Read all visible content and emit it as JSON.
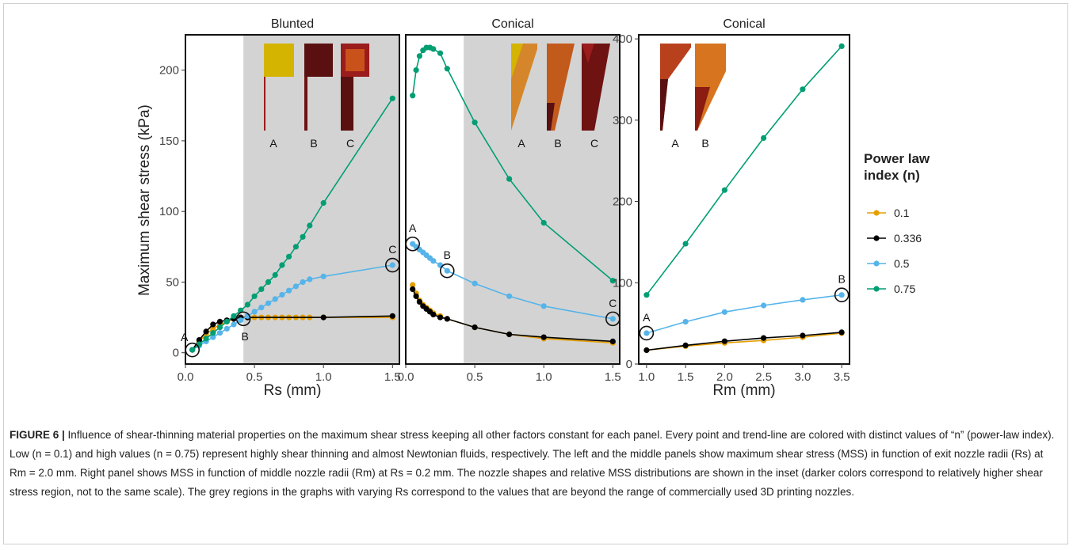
{
  "shared": {
    "ylabel": "Maximum shear stress (kPa)",
    "legend_title_lines": [
      "Power law",
      "index (n)"
    ],
    "legend_labels": [
      "0.1",
      "0.336",
      "0.5",
      "0.75"
    ],
    "colors": {
      "0.1": "#E69F00",
      "0.336": "#000000",
      "0.5": "#56B4E9",
      "0.75": "#009E73",
      "shade": "#d3d3d3",
      "inset_yellow": "#d4b400",
      "inset_dark": "#5a1010",
      "inset_red": "#9b1c1c",
      "inset_orange": "#c8521a"
    }
  },
  "chart_data": [
    {
      "type": "line",
      "title": "Blunted",
      "xlabel": "Rs (mm)",
      "xlim": [
        0,
        1.55
      ],
      "ylim": [
        -8,
        225
      ],
      "xticks": [
        0.0,
        0.5,
        1.0,
        1.5
      ],
      "xtick_labels": [
        "0.0",
        "0.5",
        "1.0",
        "1.5"
      ],
      "yticks": [
        0,
        50,
        100,
        150,
        200
      ],
      "ytick_labels": [
        "0",
        "50",
        "100",
        "150",
        "200"
      ],
      "shaded_region": [
        0.42,
        1.55
      ],
      "insets": [
        "A",
        "B",
        "C"
      ],
      "series": [
        {
          "name": "0.1",
          "x": [
            0.05,
            0.1,
            0.15,
            0.2,
            0.25,
            0.3,
            0.35,
            0.4,
            0.45,
            0.5,
            0.55,
            0.6,
            0.65,
            0.7,
            0.75,
            0.8,
            0.85,
            0.9,
            1.0,
            1.5
          ],
          "y": [
            2,
            8,
            13,
            17,
            20,
            22,
            24,
            25,
            25,
            25,
            25,
            25,
            25,
            25,
            25,
            25,
            25,
            25,
            25,
            25
          ]
        },
        {
          "name": "0.336",
          "x": [
            0.05,
            0.1,
            0.15,
            0.2,
            0.25,
            0.3,
            0.35,
            0.4,
            0.45,
            1.0,
            1.5
          ],
          "y": [
            2,
            9,
            15,
            20,
            22,
            23,
            24,
            25,
            25,
            25,
            26
          ]
        },
        {
          "name": "0.5",
          "x": [
            0.05,
            0.1,
            0.15,
            0.2,
            0.25,
            0.3,
            0.35,
            0.4,
            0.45,
            0.5,
            0.55,
            0.6,
            0.65,
            0.7,
            0.75,
            0.8,
            0.85,
            0.9,
            1.0,
            1.5
          ],
          "y": [
            2,
            5,
            8,
            11,
            14,
            17,
            20,
            23,
            26,
            29,
            32,
            35,
            38,
            41,
            44,
            47,
            50,
            52,
            54,
            62
          ]
        },
        {
          "name": "0.75",
          "x": [
            0.05,
            0.1,
            0.15,
            0.2,
            0.25,
            0.3,
            0.35,
            0.4,
            0.45,
            0.5,
            0.55,
            0.6,
            0.65,
            0.7,
            0.75,
            0.8,
            0.85,
            0.9,
            1.0,
            1.5
          ],
          "y": [
            2,
            6,
            10,
            14,
            18,
            22,
            26,
            30,
            34,
            40,
            45,
            50,
            55,
            62,
            68,
            75,
            82,
            90,
            106,
            180
          ]
        }
      ],
      "annotations": [
        {
          "text": "A",
          "x": 0.05,
          "y": 2,
          "circled": true,
          "label_dx": -10,
          "label_dy": -16
        },
        {
          "text": "B",
          "x": 0.42,
          "y": 24,
          "circled": true,
          "label_dx": 2,
          "label_dy": 22
        },
        {
          "text": "C",
          "x": 1.5,
          "y": 62,
          "circled": true,
          "label_dx": 0,
          "label_dy": -20
        }
      ]
    },
    {
      "type": "line",
      "title": "Conical",
      "xlabel": "",
      "xlim": [
        0,
        1.55
      ],
      "ylim": [
        -8,
        225
      ],
      "xticks": [
        0.0,
        0.5,
        1.0,
        1.5
      ],
      "xtick_labels": [
        "0.0",
        "0.5",
        "1.0",
        "1.5"
      ],
      "yticks": [],
      "ytick_labels": [],
      "shaded_region": [
        0.42,
        1.55
      ],
      "insets": [
        "A",
        "B",
        "C"
      ],
      "series": [
        {
          "name": "0.1",
          "x": [
            0.05,
            0.075,
            0.1,
            0.125,
            0.15,
            0.175,
            0.2,
            0.25,
            0.3,
            0.5,
            0.75,
            1.0,
            1.5
          ],
          "y": [
            48,
            42,
            37,
            34,
            32,
            30,
            28,
            26,
            24,
            18,
            13,
            10,
            7
          ]
        },
        {
          "name": "0.336",
          "x": [
            0.05,
            0.075,
            0.1,
            0.125,
            0.15,
            0.175,
            0.2,
            0.25,
            0.3,
            0.5,
            0.75,
            1.0,
            1.5
          ],
          "y": [
            45,
            40,
            36,
            33,
            31,
            29,
            27,
            25,
            24,
            18,
            13,
            11,
            8
          ]
        },
        {
          "name": "0.5",
          "x": [
            0.05,
            0.075,
            0.1,
            0.125,
            0.15,
            0.175,
            0.2,
            0.25,
            0.3,
            0.5,
            0.75,
            1.0,
            1.5
          ],
          "y": [
            77,
            75,
            73,
            71,
            69,
            67,
            65,
            62,
            58,
            49,
            40,
            33,
            24
          ]
        },
        {
          "name": "0.75",
          "x": [
            0.05,
            0.075,
            0.1,
            0.125,
            0.15,
            0.175,
            0.2,
            0.25,
            0.3,
            0.5,
            0.75,
            1.0,
            1.5
          ],
          "y": [
            182,
            200,
            210,
            214,
            216,
            216,
            215,
            212,
            201,
            163,
            123,
            92,
            51
          ]
        }
      ],
      "annotations": [
        {
          "text": "A",
          "x": 0.05,
          "y": 77,
          "circled": true,
          "label_dx": 0,
          "label_dy": -20
        },
        {
          "text": "B",
          "x": 0.3,
          "y": 58,
          "circled": true,
          "label_dx": 0,
          "label_dy": -20
        },
        {
          "text": "C",
          "x": 1.5,
          "y": 24,
          "circled": true,
          "label_dx": 0,
          "label_dy": -20
        }
      ]
    },
    {
      "type": "line",
      "title": "Conical",
      "xlabel": "Rm (mm)",
      "xlim": [
        0.9,
        3.6
      ],
      "ylim": [
        0,
        405
      ],
      "xticks": [
        1.0,
        1.5,
        2.0,
        2.5,
        3.0,
        3.5
      ],
      "xtick_labels": [
        "1.0",
        "1.5",
        "2.0",
        "2.5",
        "3.0",
        "3.5"
      ],
      "yticks": [
        0,
        100,
        200,
        300,
        400
      ],
      "ytick_labels": [
        "0",
        "100",
        "200",
        "300",
        "400"
      ],
      "shaded_region": null,
      "insets": [
        "A",
        "B"
      ],
      "series": [
        {
          "name": "0.1",
          "x": [
            1.0,
            1.5,
            2.0,
            2.5,
            3.0,
            3.5
          ],
          "y": [
            17,
            22,
            26,
            29,
            33,
            38
          ]
        },
        {
          "name": "0.336",
          "x": [
            1.0,
            1.5,
            2.0,
            2.5,
            3.0,
            3.5
          ],
          "y": [
            17,
            23,
            28,
            32,
            35,
            39
          ]
        },
        {
          "name": "0.5",
          "x": [
            1.0,
            1.5,
            2.0,
            2.5,
            3.0,
            3.5
          ],
          "y": [
            38,
            52,
            64,
            72,
            79,
            85
          ]
        },
        {
          "name": "0.75",
          "x": [
            1.0,
            1.5,
            2.0,
            2.5,
            3.0,
            3.5
          ],
          "y": [
            85,
            148,
            214,
            278,
            338,
            391
          ]
        }
      ],
      "annotations": [
        {
          "text": "A",
          "x": 1.0,
          "y": 38,
          "circled": true,
          "label_dx": 0,
          "label_dy": -20
        },
        {
          "text": "B",
          "x": 3.5,
          "y": 85,
          "circled": true,
          "label_dx": 0,
          "label_dy": -20
        }
      ]
    }
  ],
  "caption": {
    "label": "FIGURE 6 |",
    "text": " Influence of shear-thinning material properties on the maximum shear stress keeping all other factors constant for each panel. Every point and trend-line are colored with distinct values of “n” (power-law index). Low (n = 0.1) and high values (n = 0.75) represent highly shear thinning and almost Newtonian fluids, respectively. The left and the middle panels show maximum shear stress (MSS) in function of exit nozzle radii (Rs) at Rm = 2.0 mm. Right panel shows MSS in function of middle nozzle radii (Rm) at Rs = 0.2 mm. The nozzle shapes and relative MSS distributions are shown in the inset (darker colors correspond to relatively higher shear stress region, not to the same scale). The grey regions in the graphs with varying Rs correspond to the values that are beyond the range of commercially used 3D printing nozzles."
  }
}
